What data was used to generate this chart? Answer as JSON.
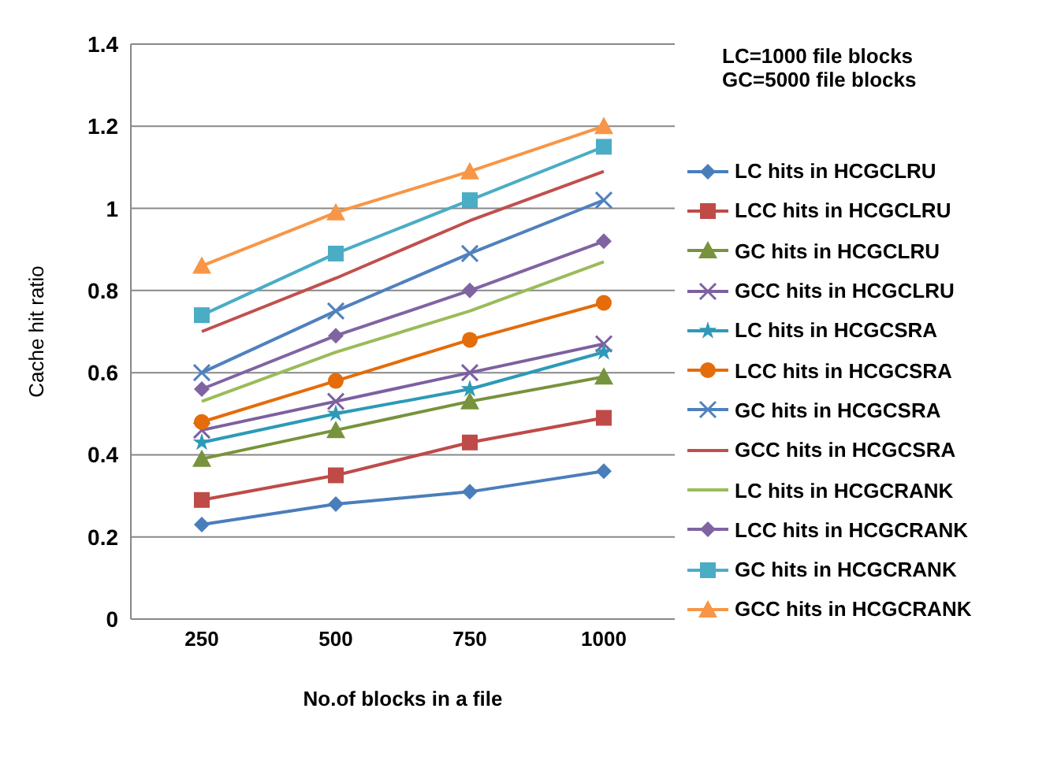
{
  "chart_data": {
    "type": "line",
    "xlabel": "No.of blocks in a file",
    "ylabel": "Cache hit  ratio",
    "categories": [
      "250",
      "500",
      "750",
      "1000"
    ],
    "ylim": [
      0,
      1.4
    ],
    "yticks": [
      0,
      0.2,
      0.4,
      0.6,
      0.8,
      1,
      1.2,
      1.4
    ],
    "grid": "y",
    "legend": "right",
    "annotations": [
      "LC=1000 file blocks",
      "GC=5000 file blocks"
    ],
    "series": [
      {
        "name": "LC hits in HCGCLRU",
        "color": "#4a7ebb",
        "marker": "diamond",
        "values": [
          0.23,
          0.28,
          0.31,
          0.36
        ]
      },
      {
        "name": "LCC hits in HCGCLRU",
        "color": "#be4b48",
        "marker": "square",
        "values": [
          0.29,
          0.35,
          0.43,
          0.49
        ]
      },
      {
        "name": "GC hits in HCGCLRU",
        "color": "#77933c",
        "marker": "triangle",
        "values": [
          0.39,
          0.46,
          0.53,
          0.59
        ]
      },
      {
        "name": "GCC hits in HCGCLRU",
        "color": "#7d60a0",
        "marker": "cross",
        "values": [
          0.46,
          0.53,
          0.6,
          0.67
        ]
      },
      {
        "name": "LC hits in HCGCSRA",
        "color": "#2c9ab7",
        "marker": "star",
        "values": [
          0.43,
          0.5,
          0.56,
          0.65
        ]
      },
      {
        "name": "LCC hits in HCGCSRA",
        "color": "#e46c0a",
        "marker": "circle",
        "values": [
          0.48,
          0.58,
          0.68,
          0.77
        ]
      },
      {
        "name": "GC hits in HCGCSRA",
        "color": "#4f81bd",
        "marker": "cross",
        "values": [
          0.6,
          0.75,
          0.89,
          1.02
        ]
      },
      {
        "name": "GCC hits in HCGCSRA",
        "color": "#c0504d",
        "marker": "none",
        "values": [
          0.7,
          0.83,
          0.97,
          1.09
        ]
      },
      {
        "name": "LC hits in HCGCRANK",
        "color": "#9bbb59",
        "marker": "none",
        "values": [
          0.53,
          0.65,
          0.75,
          0.87
        ]
      },
      {
        "name": "LCC hits in HCGCRANK",
        "color": "#8064a2",
        "marker": "diamond",
        "values": [
          0.56,
          0.69,
          0.8,
          0.92
        ]
      },
      {
        "name": "GC hits in HCGCRANK",
        "color": "#4bacc6",
        "marker": "square",
        "values": [
          0.74,
          0.89,
          1.02,
          1.15
        ]
      },
      {
        "name": "GCC hits in HCGCRANK",
        "color": "#f79646",
        "marker": "triangle",
        "values": [
          0.86,
          0.99,
          1.09,
          1.2
        ]
      }
    ]
  }
}
